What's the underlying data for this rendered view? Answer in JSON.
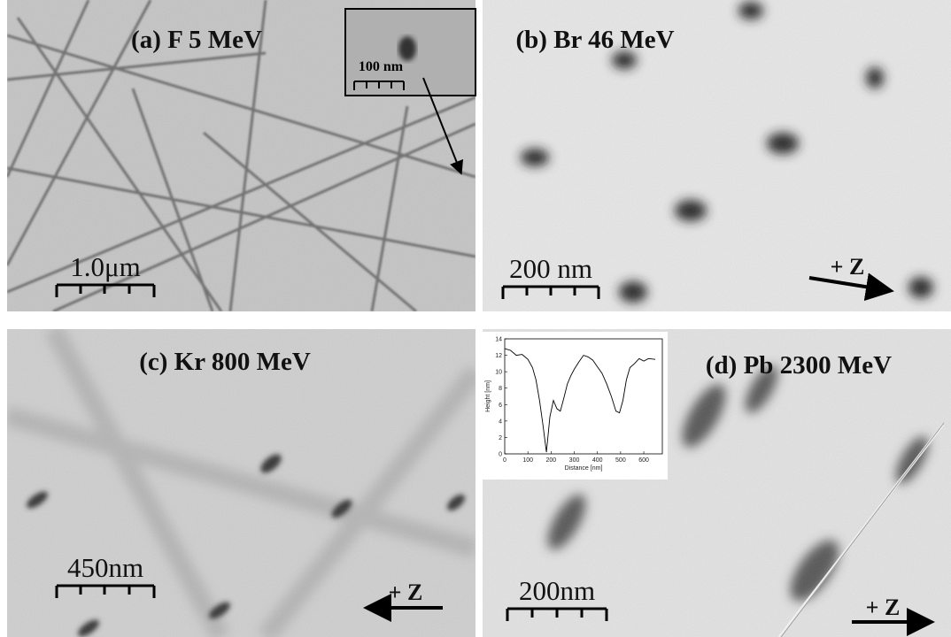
{
  "panels": [
    {
      "label": "(a) F 5 MeV",
      "scale_bar": "1.0μm",
      "inset_scale_bar": "100 nm"
    },
    {
      "label": "(b) Br 46 MeV",
      "scale_bar": "200 nm",
      "direction": "+ Z"
    },
    {
      "label": "(c) Kr 800 MeV",
      "scale_bar": "450nm",
      "direction": "+ Z"
    },
    {
      "label": "(d) Pb 2300 MeV",
      "scale_bar": "200nm",
      "direction": "+ Z",
      "inset_chart": {
        "type": "line",
        "xlabel": "Distance [nm]",
        "ylabel": "Height [nm]",
        "xlim": [
          0,
          680
        ],
        "ylim": [
          0,
          14
        ],
        "xticks": [
          0,
          100,
          200,
          300,
          400,
          500,
          600
        ],
        "yticks": [
          0,
          2,
          4,
          6,
          8,
          10,
          12,
          14
        ],
        "color": "#000000",
        "x": [
          0,
          25,
          50,
          75,
          100,
          120,
          135,
          150,
          165,
          180,
          195,
          210,
          225,
          240,
          255,
          270,
          285,
          300,
          320,
          340,
          360,
          380,
          400,
          420,
          440,
          460,
          480,
          495,
          510,
          525,
          540,
          560,
          580,
          600,
          620,
          650
        ],
        "values": [
          12.8,
          12.6,
          12.0,
          12.1,
          11.5,
          10.5,
          9.0,
          6.5,
          3.5,
          0.2,
          4.5,
          6.5,
          5.5,
          5.2,
          6.8,
          8.5,
          9.5,
          10.3,
          11.2,
          12.0,
          11.8,
          11.4,
          10.6,
          9.8,
          8.5,
          7.0,
          5.2,
          5.0,
          6.5,
          9.0,
          10.5,
          11.0,
          11.6,
          11.3,
          11.6,
          11.5
        ]
      }
    }
  ]
}
